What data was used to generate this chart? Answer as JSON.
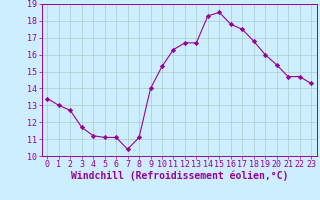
{
  "x": [
    0,
    1,
    2,
    3,
    4,
    5,
    6,
    7,
    8,
    9,
    10,
    11,
    12,
    13,
    14,
    15,
    16,
    17,
    18,
    19,
    20,
    21,
    22,
    23
  ],
  "y": [
    13.4,
    13.0,
    12.7,
    11.7,
    11.2,
    11.1,
    11.1,
    10.4,
    11.1,
    14.0,
    15.3,
    16.3,
    16.7,
    16.7,
    18.3,
    18.5,
    17.8,
    17.5,
    16.8,
    16.0,
    15.4,
    14.7,
    14.7,
    14.3
  ],
  "line_color": "#990099",
  "marker": "D",
  "marker_size": 2.2,
  "bg_color": "#cceeff",
  "grid_color": "#aacccc",
  "xlabel": "Windchill (Refroidissement éolien,°C)",
  "xlabel_color": "#990099",
  "xlabel_fontsize": 7,
  "tick_color": "#990099",
  "tick_fontsize": 6,
  "ylim": [
    10,
    19
  ],
  "xlim": [
    -0.5,
    23.5
  ],
  "yticks": [
    10,
    11,
    12,
    13,
    14,
    15,
    16,
    17,
    18,
    19
  ],
  "xticks": [
    0,
    1,
    2,
    3,
    4,
    5,
    6,
    7,
    8,
    9,
    10,
    11,
    12,
    13,
    14,
    15,
    16,
    17,
    18,
    19,
    20,
    21,
    22,
    23
  ]
}
